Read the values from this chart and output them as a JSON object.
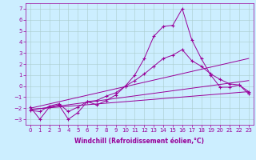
{
  "xlabel": "Windchill (Refroidissement éolien,°C)",
  "bg_color": "#cceeff",
  "line_color": "#990099",
  "grid_color": "#aacccc",
  "xlim": [
    -0.5,
    23.5
  ],
  "ylim": [
    -3.5,
    7.5
  ],
  "xticks": [
    0,
    1,
    2,
    3,
    4,
    5,
    6,
    7,
    8,
    9,
    10,
    11,
    12,
    13,
    14,
    15,
    16,
    17,
    18,
    19,
    20,
    21,
    22,
    23
  ],
  "yticks": [
    -3,
    -2,
    -1,
    0,
    1,
    2,
    3,
    4,
    5,
    6,
    7
  ],
  "series": [
    {
      "x": [
        0,
        1,
        2,
        3,
        4,
        5,
        6,
        7,
        8,
        9,
        10,
        11,
        12,
        13,
        14,
        15,
        16,
        17,
        18,
        19,
        20,
        21,
        22,
        23
      ],
      "y": [
        -1.9,
        -3.0,
        -1.9,
        -1.7,
        -3.0,
        -2.4,
        -1.4,
        -1.7,
        -1.3,
        -0.8,
        0.0,
        1.0,
        2.5,
        4.5,
        5.4,
        5.5,
        7.0,
        4.2,
        2.5,
        1.0,
        -0.1,
        -0.1,
        0.1,
        -0.7
      ],
      "marker": true
    },
    {
      "x": [
        0,
        1,
        2,
        3,
        4,
        5,
        6,
        7,
        8,
        9,
        10,
        11,
        12,
        13,
        14,
        15,
        16,
        17,
        18,
        19,
        20,
        21,
        22,
        23
      ],
      "y": [
        -2.2,
        -2.3,
        -1.8,
        -1.6,
        -2.3,
        -1.9,
        -1.4,
        -1.3,
        -0.9,
        -0.6,
        0.0,
        0.5,
        1.1,
        1.8,
        2.5,
        2.8,
        3.3,
        2.3,
        1.8,
        1.1,
        0.6,
        0.2,
        0.1,
        -0.5
      ],
      "marker": true
    },
    {
      "x": [
        0,
        23
      ],
      "y": [
        -2.0,
        2.5
      ],
      "marker": false
    },
    {
      "x": [
        0,
        23
      ],
      "y": [
        -2.1,
        -0.5
      ],
      "marker": false
    },
    {
      "x": [
        0,
        23
      ],
      "y": [
        -2.15,
        0.5
      ],
      "marker": false
    }
  ]
}
